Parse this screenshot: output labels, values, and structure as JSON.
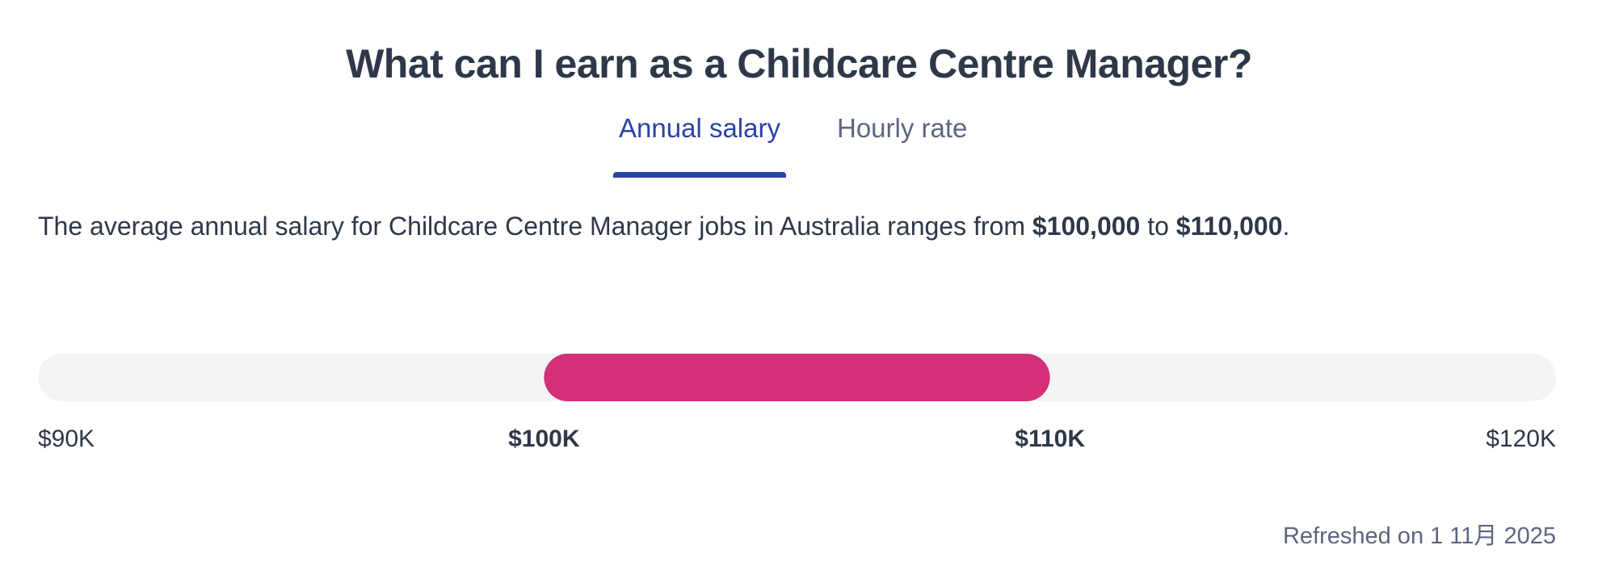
{
  "title": "What can I earn as a Childcare Centre Manager?",
  "tabs": [
    {
      "label": "Annual salary",
      "active": true
    },
    {
      "label": "Hourly rate",
      "active": false
    }
  ],
  "summary": {
    "prefix": "The average annual salary for Childcare Centre Manager jobs in Australia ranges from ",
    "low": "$100,000",
    "middle": " to ",
    "high": "$110,000",
    "suffix": "."
  },
  "chart_data": {
    "type": "range-bar",
    "axis_min": 90000,
    "axis_max": 120000,
    "range_low": 100000,
    "range_high": 110000,
    "ticks": [
      {
        "value": 90000,
        "label": "$90K",
        "bold": false
      },
      {
        "value": 100000,
        "label": "$100K",
        "bold": true
      },
      {
        "value": 110000,
        "label": "$110K",
        "bold": true
      },
      {
        "value": 120000,
        "label": "$120K",
        "bold": false
      }
    ],
    "colors": {
      "track": "#f3f4f6",
      "range": "#d42f77"
    }
  },
  "footer": {
    "refreshed": "Refreshed on 1 11月 2025"
  },
  "colors": {
    "accent": "#2a44a6",
    "text": "#2e3849",
    "muted": "#5c6680"
  }
}
